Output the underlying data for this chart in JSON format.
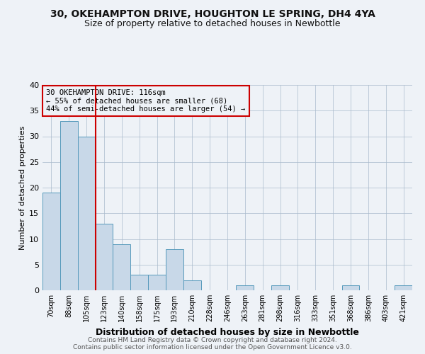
{
  "title1": "30, OKEHAMPTON DRIVE, HOUGHTON LE SPRING, DH4 4YA",
  "title2": "Size of property relative to detached houses in Newbottle",
  "xlabel": "Distribution of detached houses by size in Newbottle",
  "ylabel": "Number of detached properties",
  "footer1": "Contains HM Land Registry data © Crown copyright and database right 2024.",
  "footer2": "Contains public sector information licensed under the Open Government Licence v3.0.",
  "annotation_line1": "30 OKEHAMPTON DRIVE: 116sqm",
  "annotation_line2": "← 55% of detached houses are smaller (68)",
  "annotation_line3": "44% of semi-detached houses are larger (54) →",
  "categories": [
    "70sqm",
    "88sqm",
    "105sqm",
    "123sqm",
    "140sqm",
    "158sqm",
    "175sqm",
    "193sqm",
    "210sqm",
    "228sqm",
    "246sqm",
    "263sqm",
    "281sqm",
    "298sqm",
    "316sqm",
    "333sqm",
    "351sqm",
    "368sqm",
    "386sqm",
    "403sqm",
    "421sqm"
  ],
  "values": [
    19,
    33,
    30,
    13,
    9,
    3,
    3,
    8,
    2,
    0,
    0,
    1,
    0,
    1,
    0,
    0,
    0,
    1,
    0,
    0,
    1
  ],
  "bar_color": "#c8d8e8",
  "bar_edge_color": "#5599bb",
  "vline_color": "#cc0000",
  "vline_x_index": 2,
  "annotation_box_edge_color": "#cc0000",
  "background_color": "#eef2f7",
  "ylim": [
    0,
    40
  ],
  "yticks": [
    0,
    5,
    10,
    15,
    20,
    25,
    30,
    35,
    40
  ]
}
